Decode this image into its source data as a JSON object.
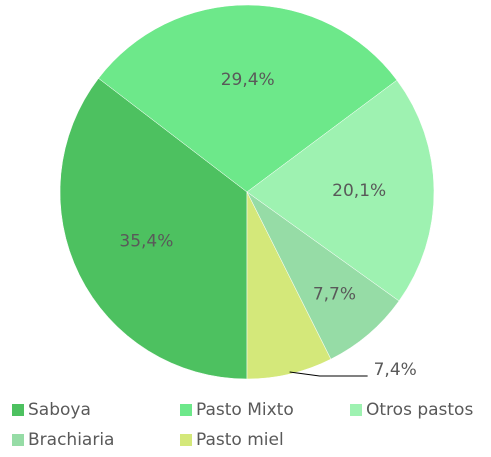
{
  "chart_data": {
    "type": "pie",
    "categories": [
      "Saboya",
      "Pasto Mixto",
      "Otros pastos",
      "Brachiaria",
      "Pasto miel"
    ],
    "values": [
      35.4,
      29.4,
      20.1,
      7.7,
      7.4
    ],
    "value_labels": [
      "35,4%",
      "29,4%",
      "20,1%",
      "7,7%",
      "7,4%"
    ],
    "colors": [
      "#4dc160",
      "#6de88a",
      "#9ef2b1",
      "#96dca6",
      "#d4e87a"
    ],
    "legend": "bottom"
  }
}
